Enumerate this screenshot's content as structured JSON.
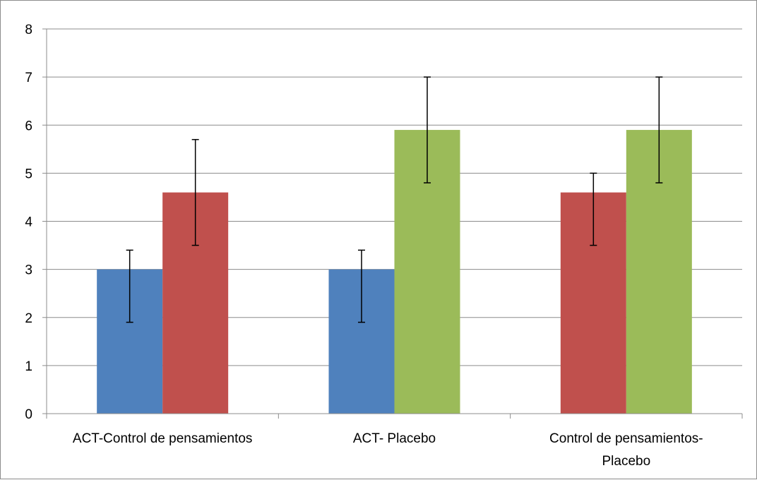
{
  "chart_data": {
    "type": "bar",
    "title": "",
    "xlabel": "",
    "ylabel": "",
    "ylim": [
      0,
      8
    ],
    "yticks": [
      0,
      1,
      2,
      3,
      4,
      5,
      6,
      7,
      8
    ],
    "grid": true,
    "legend": "none",
    "categories": [
      [
        "ACT-Control de pensamientos"
      ],
      [
        "ACT- Placebo"
      ],
      [
        "Control de pensamientos-",
        "Placebo"
      ]
    ],
    "series": [
      {
        "color": "#4f81bd",
        "values": [
          3.0,
          3.0,
          null
        ],
        "error_low": [
          1.9,
          1.9,
          null
        ],
        "error_high": [
          3.4,
          3.4,
          null
        ]
      },
      {
        "color": "#c0504d",
        "values": [
          4.6,
          null,
          4.6
        ],
        "error_low": [
          3.5,
          null,
          3.5
        ],
        "error_high": [
          5.7,
          null,
          5.0
        ]
      },
      {
        "color": "#9bbb59",
        "values": [
          null,
          5.9,
          5.9
        ],
        "error_low": [
          null,
          4.8,
          4.8
        ],
        "error_high": [
          null,
          7.0,
          7.0
        ]
      }
    ]
  }
}
